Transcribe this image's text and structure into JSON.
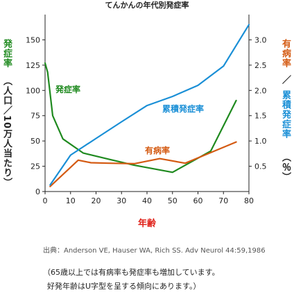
{
  "chart_data": {
    "type": "line",
    "title": "てんかんの年代別発症率",
    "xlabel": "年齢",
    "ylabel_left_upper": "発症率",
    "ylabel_left_lower": "（人口／10万人当たり）",
    "ylabel_right_upper": "有病率",
    "ylabel_right_mid": "／",
    "ylabel_right_lower": "累積発症率",
    "ylabel_right_unit": "（％）",
    "xlim": [
      0,
      80
    ],
    "ylim_left": [
      0,
      175
    ],
    "ylim_right": [
      0,
      3.5
    ],
    "x_ticks": [
      "0",
      "10",
      "20",
      "30",
      "40",
      "50",
      "60",
      "70",
      "80"
    ],
    "y_ticks_left": [
      "0",
      "25",
      "50",
      "75",
      "100",
      "125",
      "150"
    ],
    "y_ticks_right": [
      "0.5",
      "1.0",
      "1.5",
      "2.0",
      "2.5",
      "3.0"
    ],
    "series": [
      {
        "name": "発症率",
        "axis": "left",
        "color": "#1f8a1f",
        "x": [
          0,
          1,
          3,
          7,
          15,
          25,
          35,
          50,
          65,
          75
        ],
        "y": [
          127,
          118,
          75,
          52,
          38,
          32,
          26,
          19,
          40,
          90
        ]
      },
      {
        "name": "有病率",
        "axis": "right",
        "color": "#d45a12",
        "x": [
          2,
          13,
          18,
          25,
          35,
          45,
          55,
          65,
          75
        ],
        "y": [
          0.1,
          0.62,
          0.57,
          0.56,
          0.55,
          0.65,
          0.56,
          0.77,
          0.98
        ]
      },
      {
        "name": "累積発症率",
        "axis": "right",
        "color": "#1a8fd6",
        "x": [
          2,
          10,
          20,
          30,
          40,
          50,
          60,
          70,
          80
        ],
        "y": [
          0.13,
          0.72,
          1.05,
          1.38,
          1.7,
          1.88,
          2.1,
          2.48,
          3.3
        ]
      }
    ],
    "source": "出典：Anderson VE, Hauser WA, Rich SS. Adv Neurol  44:59,1986",
    "note_line1": "（65歳以上では有病率も発症率も増加しています。",
    "note_line2": "好発年齢はU字型を呈する傾向にあります。）"
  }
}
